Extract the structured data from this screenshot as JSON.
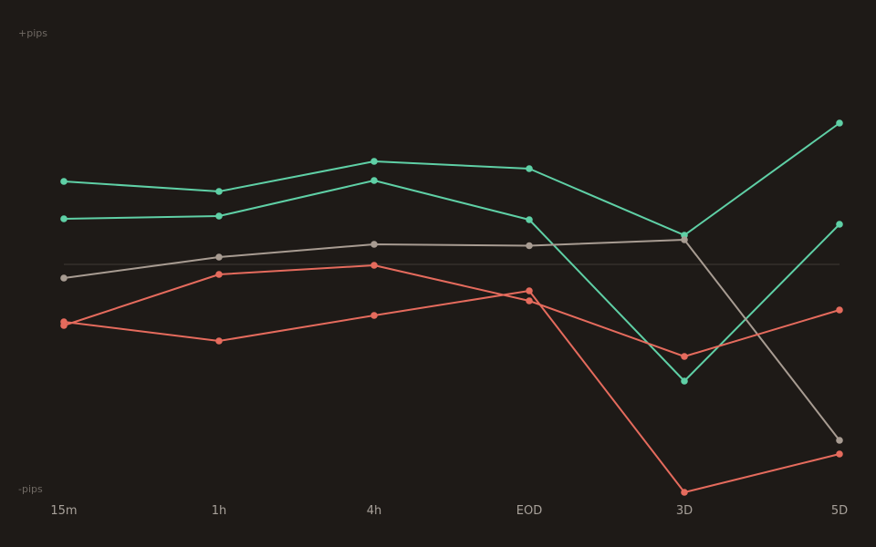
{
  "chart_data": {
    "type": "line",
    "ylabel_top": "+pips",
    "ylabel_bottom": "-pips",
    "categories": [
      "15m",
      "1h",
      "4h",
      "EOD",
      "3D",
      "5D"
    ],
    "ylim": [
      -100,
      100
    ],
    "zero_line": true,
    "grid": false,
    "series": [
      {
        "color": "#5fd0a6",
        "values": [
          36.4,
          32.0,
          45.2,
          42.0,
          12.8,
          62.0
        ]
      },
      {
        "color": "#5fd0a6",
        "values": [
          20.0,
          21.2,
          36.8,
          19.6,
          -51.2,
          17.6
        ]
      },
      {
        "color": "#a89c92",
        "values": [
          -6.0,
          3.2,
          8.8,
          8.2,
          10.8,
          -77.2
        ]
      },
      {
        "color": "#e56b5d",
        "values": [
          -26.8,
          -4.4,
          -0.4,
          -16.0,
          -40.4,
          -20.0
        ]
      },
      {
        "color": "#e56b5d",
        "values": [
          -25.2,
          -33.6,
          -22.4,
          -11.6,
          -100.0,
          -83.2
        ]
      }
    ],
    "zero_line_color": "#3a342f",
    "background": "#1e1a17"
  }
}
